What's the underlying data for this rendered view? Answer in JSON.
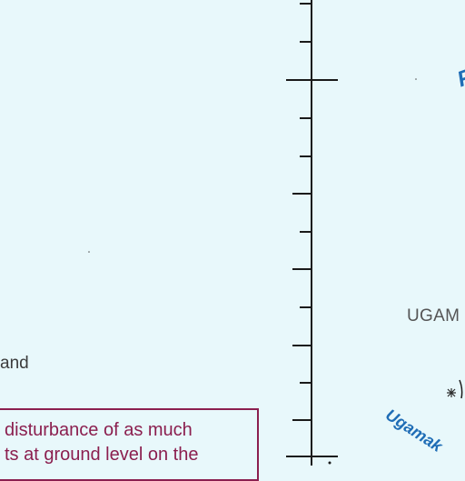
{
  "map": {
    "colors": {
      "water": "#e8f8fb",
      "gridline": "#1a1a1a",
      "note": "#8b1f4f",
      "place_label": "#555555",
      "water_label": "#1f6db6"
    },
    "labels": {
      "partial_left": "and",
      "partial_ugam": "UGAM",
      "ugamak": "Ugamak",
      "edge_fragment": "P"
    },
    "note": {
      "line1": "disturbance of as much",
      "line2": "ts at ground level on the"
    },
    "icons": [
      "rock-symbol-icon"
    ]
  }
}
